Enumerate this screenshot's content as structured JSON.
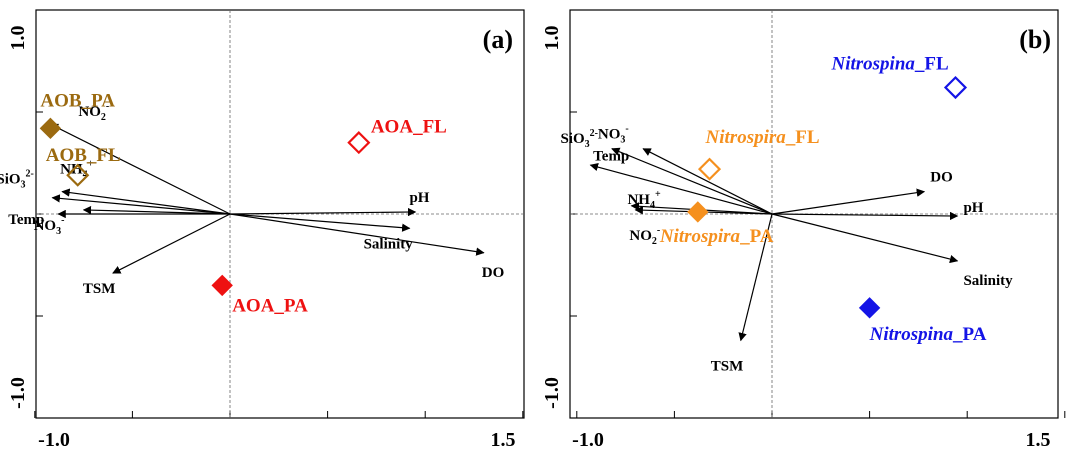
{
  "chart_data": [
    {
      "type": "scatter",
      "panel_label": "(a)",
      "xlim": [
        -1.0,
        1.5
      ],
      "ylim": [
        -1.0,
        1.0
      ],
      "x_tick_labels": [
        "-1.0",
        "1.5"
      ],
      "y_tick_labels": [
        "1.0",
        "-1.0"
      ],
      "reference_lines": {
        "x": 0,
        "y": 0
      },
      "environmental_vectors": [
        {
          "name": "NO2",
          "sup": "-",
          "sub": "2",
          "x": -0.92,
          "y": 0.44
        },
        {
          "name": "NH4",
          "sup": "+",
          "sub": "4",
          "x": -0.86,
          "y": 0.11
        },
        {
          "name": "SiO3",
          "sup": "2-",
          "sub": "3",
          "x": -0.91,
          "y": 0.08
        },
        {
          "name": "Temp",
          "sup": "",
          "sub": "",
          "x": -0.88,
          "y": 0.0
        },
        {
          "name": "NO3",
          "sup": "-",
          "sub": "3",
          "x": -0.75,
          "y": 0.02
        },
        {
          "name": "TSM",
          "sup": "",
          "sub": "",
          "x": -0.6,
          "y": -0.29
        },
        {
          "name": "pH",
          "sup": "",
          "sub": "",
          "x": 0.95,
          "y": 0.01
        },
        {
          "name": "Salinity",
          "sup": "",
          "sub": "",
          "x": 0.92,
          "y": -0.07
        },
        {
          "name": "DO",
          "sup": "",
          "sub": "",
          "x": 1.3,
          "y": -0.19
        }
      ],
      "taxa": [
        {
          "name": "AOB",
          "suffix": "_PA",
          "italic": false,
          "filled": true,
          "color": "#9B6A10",
          "x": -0.92,
          "y": 0.42
        },
        {
          "name": "AOB",
          "suffix": "_FL",
          "italic": false,
          "filled": false,
          "color": "#9B6A10",
          "x": -0.78,
          "y": 0.19
        },
        {
          "name": "AOA",
          "suffix": "_FL",
          "italic": false,
          "filled": false,
          "color": "#EE1111",
          "x": 0.66,
          "y": 0.35
        },
        {
          "name": "AOA",
          "suffix": "_PA",
          "italic": false,
          "filled": true,
          "color": "#EE1111",
          "x": -0.04,
          "y": -0.35
        }
      ]
    },
    {
      "type": "scatter",
      "panel_label": "(b)",
      "xlim": [
        -1.0,
        1.5
      ],
      "ylim": [
        -1.0,
        1.0
      ],
      "x_tick_labels": [
        "-1.0",
        "1.5"
      ],
      "y_tick_labels": [
        "1.0",
        "-1.0"
      ],
      "reference_lines": {
        "x": 0,
        "y": 0
      },
      "environmental_vectors": [
        {
          "name": "NO3",
          "sup": "-",
          "sub": "3",
          "x": -0.82,
          "y": 0.32
        },
        {
          "name": "Temp",
          "sup": "",
          "sub": "",
          "x": -0.66,
          "y": 0.32
        },
        {
          "name": "SiO3",
          "sup": "2-",
          "sub": "3",
          "x": -0.93,
          "y": 0.24
        },
        {
          "name": "NH4",
          "sup": "+",
          "sub": "4",
          "x": -0.72,
          "y": 0.04
        },
        {
          "name": "NO2",
          "sup": "-",
          "sub": "2",
          "x": -0.7,
          "y": 0.02
        },
        {
          "name": "DO",
          "sup": "",
          "sub": "",
          "x": 0.78,
          "y": 0.11
        },
        {
          "name": "pH",
          "sup": "",
          "sub": "",
          "x": 0.95,
          "y": -0.01
        },
        {
          "name": "Salinity",
          "sup": "",
          "sub": "",
          "x": 0.95,
          "y": -0.23
        },
        {
          "name": "TSM",
          "sup": "",
          "sub": "",
          "x": -0.16,
          "y": -0.62
        }
      ],
      "taxa": [
        {
          "name": "Nitrospina",
          "suffix": "_FL",
          "italic": true,
          "filled": false,
          "color": "#1414E6",
          "x": 0.94,
          "y": 0.62
        },
        {
          "name": "Nitrospira",
          "suffix": "_FL",
          "italic": true,
          "filled": false,
          "color": "#F5901E",
          "x": -0.32,
          "y": 0.22
        },
        {
          "name": "Nitrospira",
          "suffix": "_PA",
          "italic": true,
          "filled": true,
          "color": "#F5901E",
          "x": -0.38,
          "y": 0.01
        },
        {
          "name": "Nitrospina",
          "suffix": "_PA",
          "italic": true,
          "filled": true,
          "color": "#1414E6",
          "x": 0.5,
          "y": -0.46
        }
      ]
    }
  ]
}
